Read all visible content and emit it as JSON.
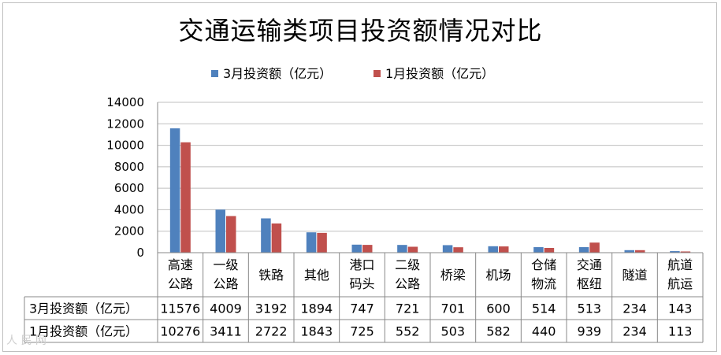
{
  "chart_data": {
    "type": "bar",
    "title": "交通运输类项目投资额情况对比",
    "categories": [
      [
        "高速",
        "公路"
      ],
      [
        "一级",
        "公路"
      ],
      [
        "铁路"
      ],
      [
        "其他"
      ],
      [
        "港口",
        "码头"
      ],
      [
        "二级",
        "公路"
      ],
      [
        "桥梁"
      ],
      [
        "机场"
      ],
      [
        "仓储",
        "物流"
      ],
      [
        "交通",
        "枢纽"
      ],
      [
        "隧道"
      ],
      [
        "航道",
        "航运"
      ]
    ],
    "series": [
      {
        "name": "3月投资额（亿元）",
        "color": "#4f81bd",
        "values": [
          11576,
          4009,
          3192,
          1894,
          747,
          721,
          701,
          600,
          514,
          513,
          234,
          143
        ]
      },
      {
        "name": "1月投资额（亿元）",
        "color": "#c0504d",
        "values": [
          10276,
          3411,
          2722,
          1843,
          725,
          552,
          503,
          582,
          440,
          939,
          234,
          113
        ]
      }
    ],
    "yticks": [
      "0",
      "2000",
      "4000",
      "6000",
      "8000",
      "10000",
      "12000",
      "14000"
    ],
    "ylim": [
      0,
      14000
    ],
    "grid": true,
    "legend_position": "top",
    "data_table": true
  },
  "watermark": "人 民 网"
}
